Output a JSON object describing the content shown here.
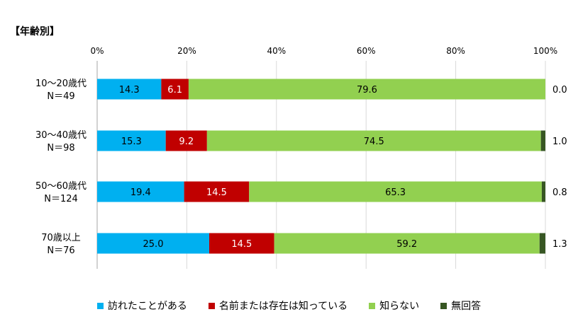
{
  "title": "【年齢別】",
  "chart_data": {
    "type": "bar",
    "orientation": "horizontal",
    "stacked": true,
    "xlim": [
      0,
      100
    ],
    "ticks": [
      "0%",
      "20%",
      "40%",
      "60%",
      "80%",
      "100%"
    ],
    "categories": [
      [
        "10～20歳代",
        "N＝49"
      ],
      [
        "30～40歳代",
        "N＝98"
      ],
      [
        "50～60歳代",
        "N＝124"
      ],
      [
        "70歳以上",
        "N＝76"
      ]
    ],
    "series": [
      {
        "name": "訪れたことがある",
        "color": "#00b0f0",
        "values": [
          14.3,
          15.3,
          19.4,
          25.0
        ]
      },
      {
        "name": "名前または存在は知っている",
        "color": "#c00000",
        "values": [
          6.1,
          9.2,
          14.5,
          14.5
        ]
      },
      {
        "name": "知らない",
        "color": "#92d050",
        "values": [
          79.6,
          74.5,
          65.3,
          59.2
        ]
      },
      {
        "name": "無回答",
        "color": "#375623",
        "values": [
          0.0,
          1.0,
          0.8,
          1.3
        ]
      }
    ],
    "value_labels": [
      [
        "14.3",
        "6.1",
        "79.6",
        "0.0"
      ],
      [
        "15.3",
        "9.2",
        "74.5",
        "1.0"
      ],
      [
        "19.4",
        "14.5",
        "65.3",
        "0.8"
      ],
      [
        "25.0",
        "14.5",
        "59.2",
        "1.3"
      ]
    ],
    "grid": true,
    "legend_position": "bottom"
  }
}
